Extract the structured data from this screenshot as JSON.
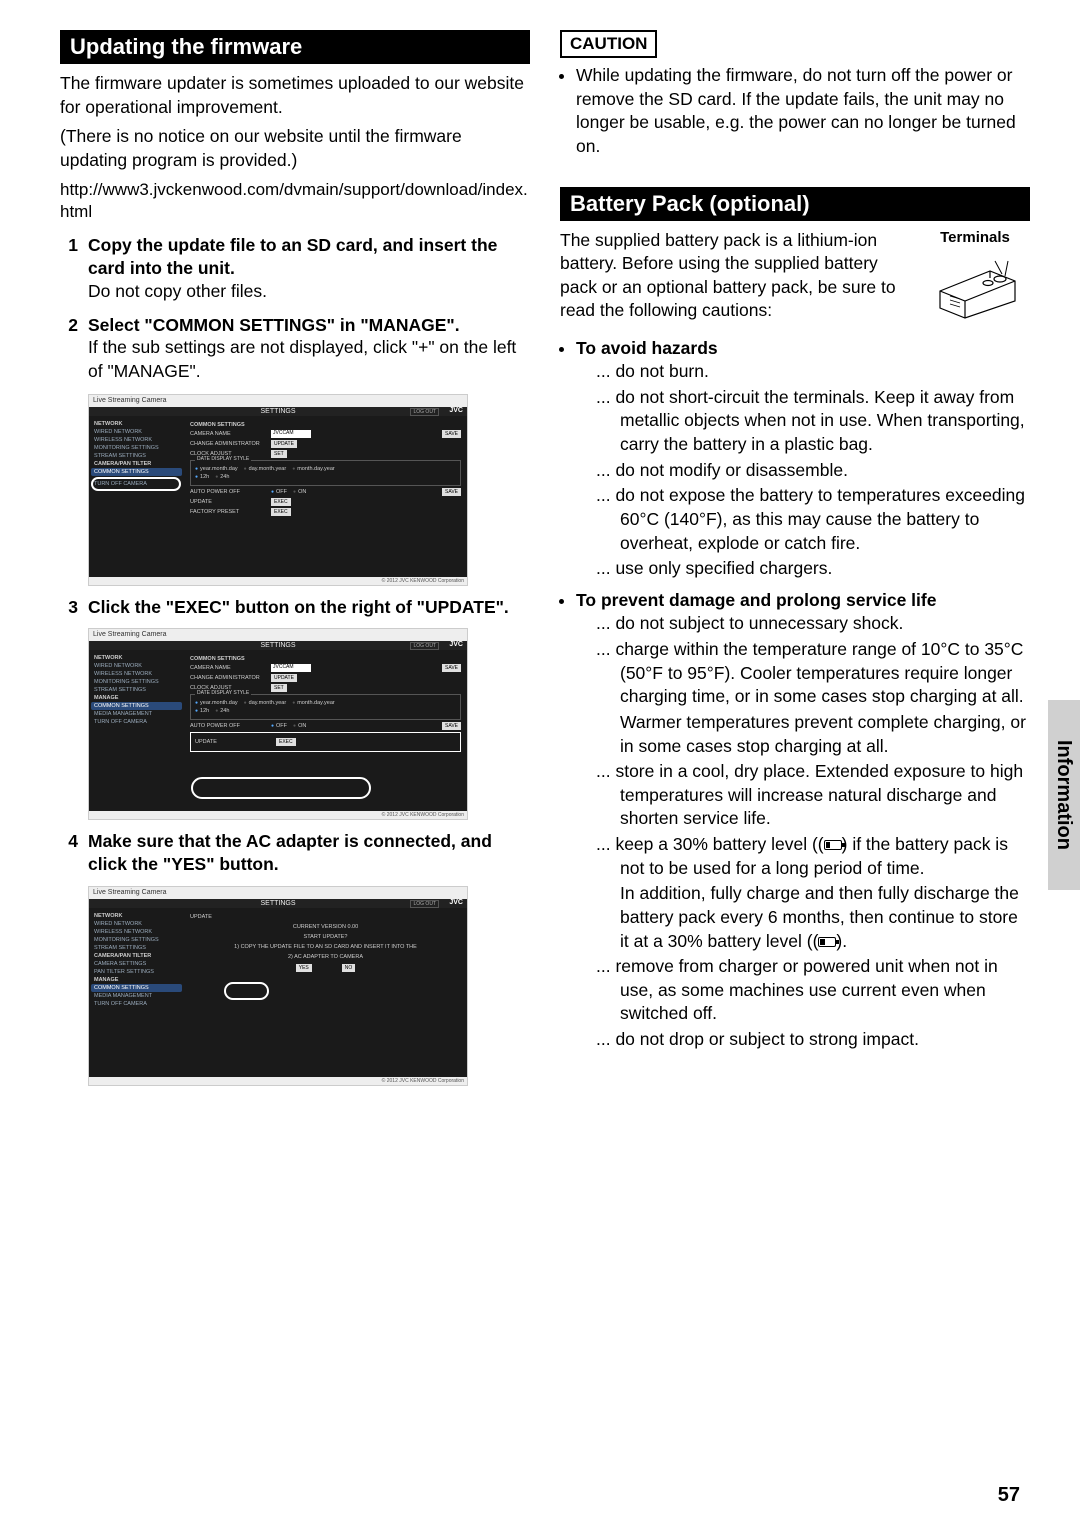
{
  "left": {
    "heading": "Updating the firmware",
    "intro1": "The firmware updater is sometimes uploaded to our website for operational improvement.",
    "intro2": "(There is no notice on our website until the firmware updating program is provided.)",
    "url": "http://www3.jvckenwood.com/dvmain/support/download/index.html",
    "steps": [
      {
        "num": "1",
        "title": "Copy the update file to an SD card, and insert the card into the unit.",
        "body": "Do not copy other files."
      },
      {
        "num": "2",
        "title": "Select \"COMMON SETTINGS\" in \"MANAGE\".",
        "body": "If the sub settings are not displayed, click \"+\" on the left of \"MANAGE\"."
      },
      {
        "num": "3",
        "title": "Click the \"EXEC\" button on the right of \"UPDATE\".",
        "body": ""
      },
      {
        "num": "4",
        "title": "Make sure that the AC adapter is connected, and click the \"YES\" button.",
        "body": ""
      }
    ],
    "scr": {
      "top": "Live Streaming Camera",
      "title": "SETTINGS",
      "logo": "JVC",
      "logout": "LOG OUT",
      "copyright": "© 2012 JVC KENWOOD Corporation",
      "side_network_hdr": "NETWORK",
      "side_items_net": [
        "WIRED NETWORK",
        "WIRELESS NETWORK",
        "MONITORING SETTINGS",
        "STREAM SETTINGS"
      ],
      "side_filter_hdr": "CAMERA/PAN TILTER",
      "side_filter_items": [
        "CAMERA SETTINGS",
        "PAN TILTER SETTINGS"
      ],
      "side_manage_hdr": "MANAGE",
      "side_common": "COMMON SETTINGS",
      "side_media": "MEDIA MANAGEMENT",
      "side_turnoff": "TURN OFF CAMERA",
      "common_label": "COMMON SETTINGS",
      "camera_name": "CAMERA NAME",
      "camera_val": "JVCCAM",
      "change_admin": "CHANGE ADMINISTRATOR",
      "update_btn": "UPDATE",
      "clock": "CLOCK ADJUST",
      "set_btn": "SET",
      "date_style": "DATE DISPLAY STYLE",
      "ymd": "year.month.day",
      "dmy": "day.month.year",
      "mdy": "month.day.year",
      "h12": "12h",
      "h24": "24h",
      "auto_off": "AUTO POWER OFF",
      "off": "OFF",
      "on": "ON",
      "update": "UPDATE",
      "exec": "EXEC",
      "factory": "FACTORY PRESET",
      "save": "SAVE",
      "curr_ver": "CURRENT VERSION 0.00",
      "start_update": "START UPDATE?",
      "copy_msg": "1) COPY THE UPDATE FILE TO AN SD CARD AND INSERT IT INTO THE",
      "ac_msg": "2) AC ADAPTER TO CAMERA",
      "yes": "YES",
      "no": "NO"
    }
  },
  "right": {
    "caution_label": "CAUTION",
    "caution_text": "While updating the firmware, do not turn off the power or remove the SD card. If the update fails, the unit may no longer be usable, e.g. the power can no longer be turned on.",
    "heading": "Battery Pack (optional)",
    "intro": "The supplied battery pack is a lithium-ion battery. Before using the supplied battery pack or an optional battery pack, be sure to read the following cautions:",
    "terminals": "Terminals",
    "hazards_head": "To avoid hazards",
    "hazards": [
      "do not burn.",
      "do not short-circuit the terminals. Keep it away from metallic objects when not in use. When transporting, carry the battery in a plastic bag.",
      "do not modify or disassemble.",
      "do not expose the battery to temperatures exceeding 60°C (140°F), as this may cause the battery to overheat, explode or catch fire.",
      "use only specified chargers."
    ],
    "prevent_head": "To prevent damage and prolong service life",
    "prevent": [
      {
        "t": "do not subject to unnecessary shock."
      },
      {
        "t": "charge within the temperature range of 10°C to 35°C (50°F to 95°F). Cooler temperatures require longer charging time, or in some cases stop charging at all."
      },
      {
        "cont": true,
        "t": "Warmer temperatures prevent complete charging, or in some cases stop charging at all."
      },
      {
        "t": "store in a cool, dry place. Extended exposure to high temperatures will increase natural discharge and shorten service life."
      },
      {
        "t": "keep a 30% battery level (🔋) if the battery pack is not to be used for a long period of time."
      },
      {
        "cont": true,
        "t": "In addition, fully charge and then fully discharge the battery pack every 6 months, then continue to store it at a 30% battery level (🔋)."
      },
      {
        "t": "remove from charger or powered unit when not in use, as some machines use current even when switched off."
      },
      {
        "t": "do not drop or subject to strong impact."
      }
    ]
  },
  "side_tab": "Information",
  "page": "57"
}
